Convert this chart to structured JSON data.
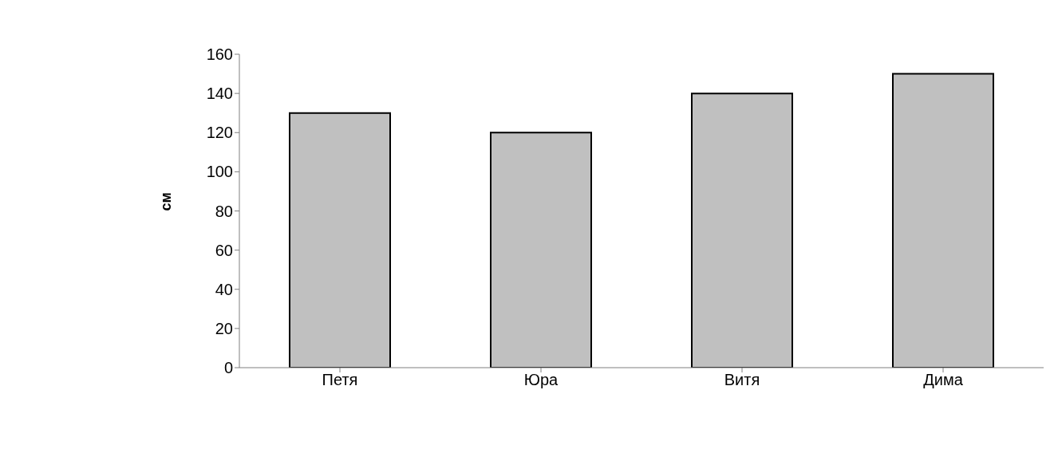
{
  "chart_data": {
    "type": "bar",
    "ylabel": "см",
    "categories": [
      "Петя",
      "Юра",
      "Витя",
      "Дима"
    ],
    "values": [
      130,
      120,
      140,
      150
    ],
    "color": "#c0c0c0",
    "ylim": [
      0,
      160
    ],
    "yticks": [
      0,
      20,
      40,
      60,
      80,
      100,
      120,
      140,
      160
    ],
    "grid": false
  }
}
